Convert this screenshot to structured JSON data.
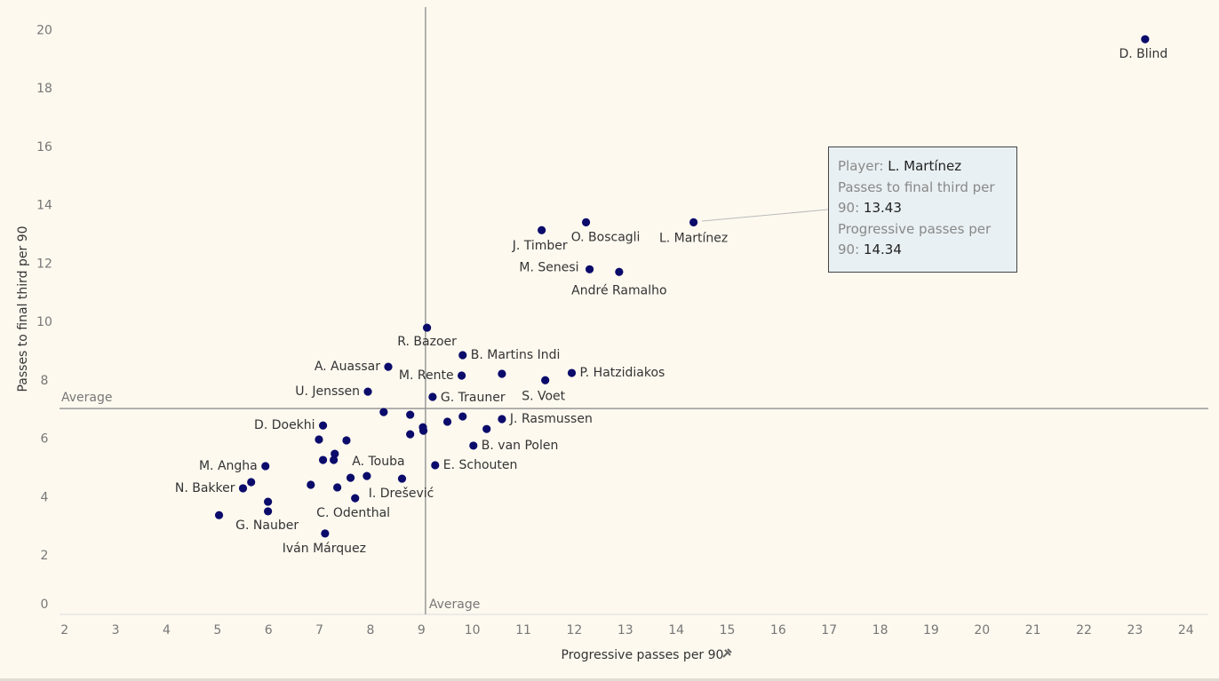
{
  "chart_data": {
    "type": "scatter",
    "x_label": "Progressive passes per 90",
    "y_label": "Passes to final third per 90",
    "xlim": [
      1.9,
      24.44
    ],
    "ylim": [
      0,
      20.8
    ],
    "xticks": [
      2,
      3,
      4,
      5,
      6,
      7,
      8,
      9,
      10,
      11,
      12,
      13,
      14,
      15,
      16,
      17,
      18,
      19,
      20,
      21,
      22,
      23,
      24
    ],
    "yticks": [
      0,
      2,
      4,
      6,
      8,
      10,
      12,
      14,
      16,
      18,
      20
    ],
    "color": "#0b0b6b",
    "reference": {
      "label": "Average",
      "x": 9.08,
      "y": 7.05
    },
    "series": [
      {
        "name": null,
        "x": [
          23.2,
          14.34,
          12.23,
          11.36,
          12.3,
          12.88,
          9.11,
          9.81,
          8.35,
          9.79,
          10.58,
          11.43,
          11.95,
          7.95,
          9.22,
          8.26,
          8.78,
          9.81,
          10.58,
          9.51,
          9.03,
          9.04,
          10.28,
          7.07,
          8.78,
          6.99,
          7.53,
          10.02,
          7.3,
          7.07,
          7.28,
          9.27,
          5.94,
          7.93,
          7.61,
          8.62,
          5.66,
          5.5,
          6.83,
          7.35,
          7.7,
          5.99,
          5.99,
          5.03,
          7.11
        ],
        "values": [
          19.7,
          13.43,
          13.43,
          13.16,
          11.82,
          11.73,
          9.82,
          8.88,
          8.48,
          8.18,
          8.24,
          8.02,
          8.27,
          7.63,
          7.45,
          6.93,
          6.84,
          6.78,
          6.69,
          6.6,
          6.41,
          6.29,
          6.35,
          6.47,
          6.17,
          5.99,
          5.96,
          5.78,
          5.5,
          5.29,
          5.29,
          5.11,
          5.08,
          4.74,
          4.68,
          4.65,
          4.53,
          4.32,
          4.44,
          4.35,
          3.98,
          3.86,
          3.53,
          3.4,
          2.77
        ],
        "labels": [
          "D. Blind",
          "L. Martínez",
          "O. Boscagli",
          "J. Timber",
          "M. Senesi",
          "André Ramalho",
          "R. Bazoer",
          "B. Martins Indi",
          "A. Auassar",
          "M. Rente",
          null,
          "S. Voet",
          "P. Hatzidiakos",
          "U. Jenssen",
          "G. Trauner",
          null,
          null,
          null,
          "J. Rasmussen",
          null,
          null,
          null,
          null,
          "D. Doekhi",
          null,
          null,
          null,
          "B. van Polen",
          null,
          null,
          null,
          "E. Schouten",
          "M. Angha",
          "A. Touba",
          null,
          null,
          null,
          "N. Bakker",
          null,
          "C. Odenthal",
          "I. Drešević",
          null,
          "G. Nauber",
          null,
          "Iván Márquez"
        ]
      }
    ],
    "tooltip": {
      "player_key": "Player:",
      "player": "L. Martínez",
      "y_key": "Passes to final third per 90:",
      "y_value": 13.43,
      "x_key": "Progressive passes per 90:",
      "x_value": 14.34
    }
  }
}
